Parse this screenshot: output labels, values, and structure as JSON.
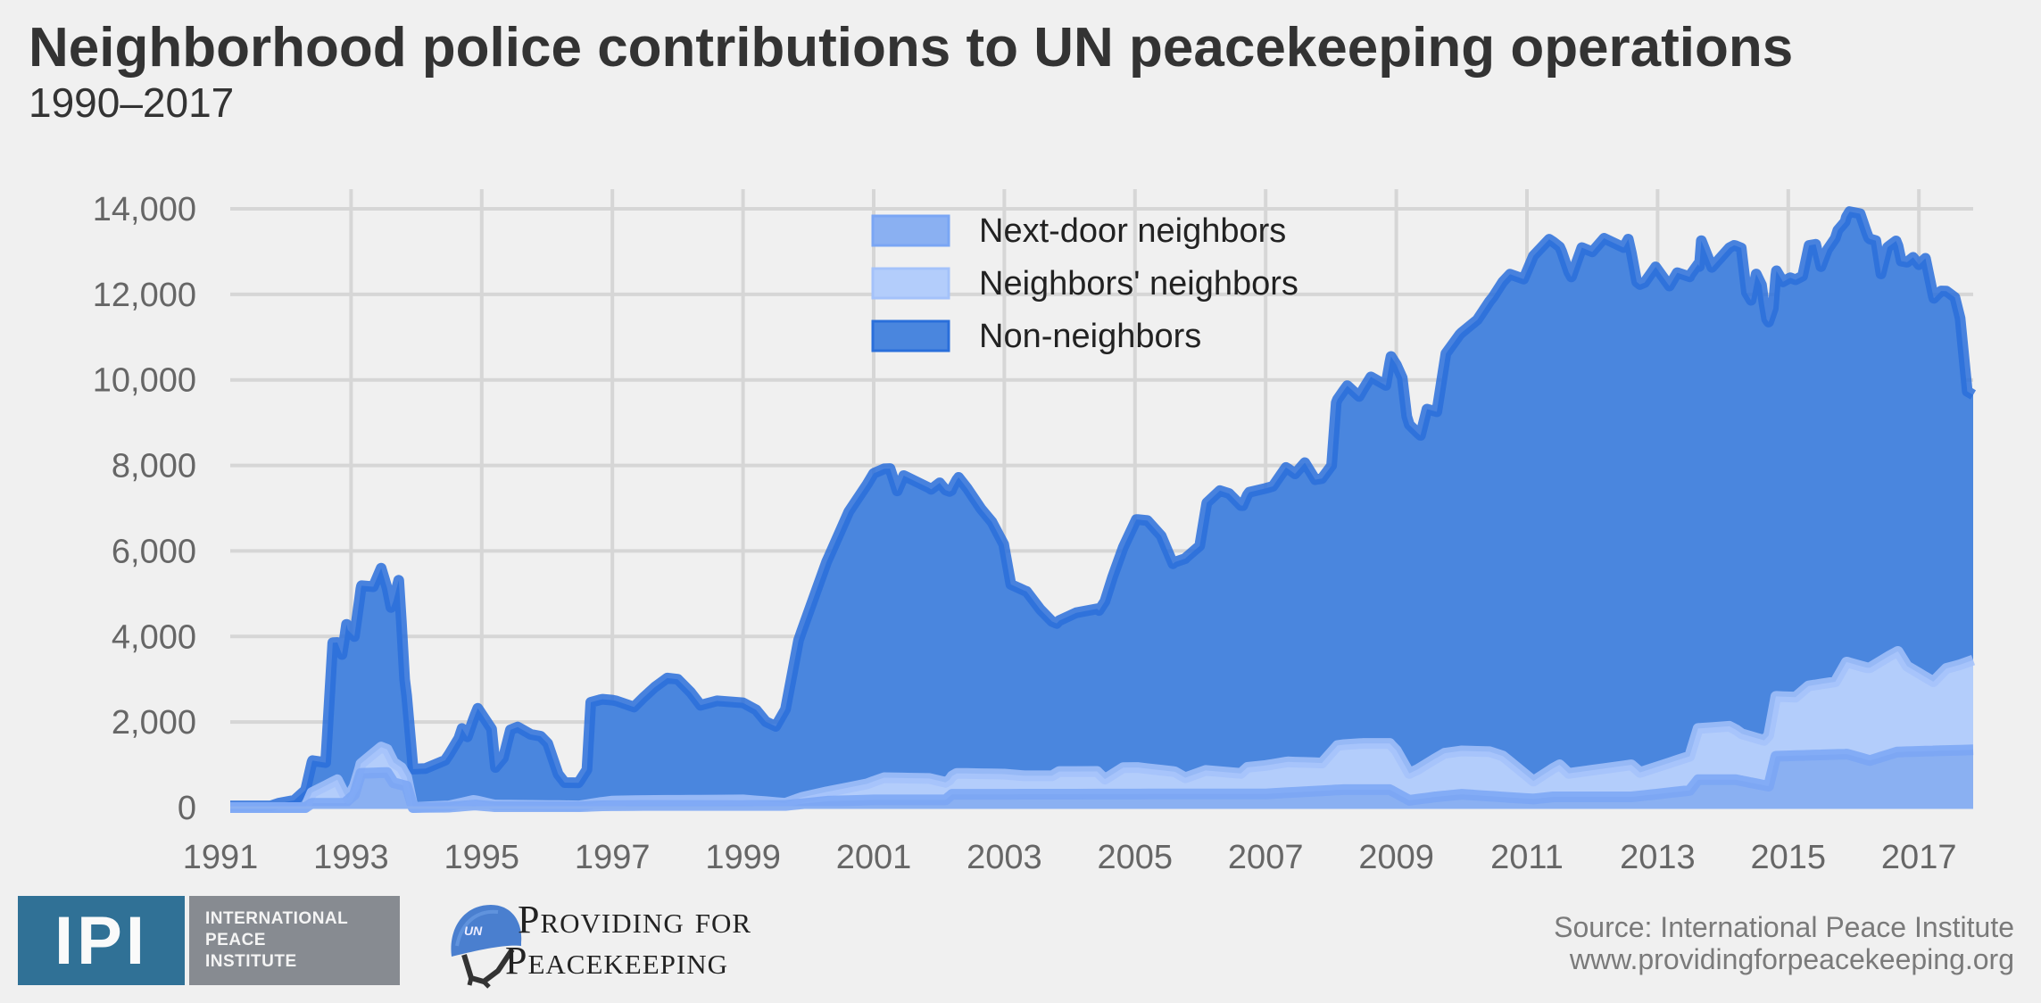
{
  "header": {
    "title": "Neighborhood police contributions to UN peacekeeping operations",
    "subtitle": "1990–2017"
  },
  "footer": {
    "ipi_logo": {
      "abbr": "IPI",
      "lines": [
        "INTERNATIONAL",
        "PEACE",
        "INSTITUTE"
      ]
    },
    "pfp_logo": {
      "helmet_text": "UN",
      "line1": "Providing for",
      "line2": "Peacekeeping"
    },
    "source_line1": "Source: International Peace Institute",
    "source_line2": "www.providingforpeacekeeping.org"
  },
  "colors": {
    "background": "#f0f0f0",
    "grid": "#d6d6d6",
    "next_door_fill": "#8ab0f2",
    "next_door_stroke": "#7aa6f4",
    "neighbors_neighbors_fill": "#b3cdfb",
    "neighbors_neighbors_stroke": "#a4c2fa",
    "non_neighbors_fill": "#4a86de",
    "non_neighbors_stroke": "#2a6fdb",
    "ipi_blue": "#307196",
    "ipi_gray": "#878b91"
  },
  "chart_data": {
    "type": "area",
    "stacked": true,
    "title": "Neighborhood police contributions to UN peacekeeping operations",
    "subtitle": "1990–2017",
    "xlabel": "",
    "ylabel": "",
    "xlim": [
      1991.0,
      2017.83
    ],
    "ylim": [
      0,
      14000
    ],
    "grid": true,
    "legend_position": "top-center",
    "x_ticks": [
      "1991",
      "1993",
      "1995",
      "1997",
      "1999",
      "2001",
      "2003",
      "2005",
      "2007",
      "2009",
      "2011",
      "2013",
      "2015",
      "2017"
    ],
    "y_ticks": [
      "0",
      "2,000",
      "4,000",
      "6,000",
      "8,000",
      "10,000",
      "12,000",
      "14,000"
    ],
    "y_tick_values": [
      0,
      2000,
      4000,
      6000,
      8000,
      10000,
      12000,
      14000
    ],
    "legend": [
      "Next-door neighbors",
      "Neighbors' neighbors",
      "Non-neighbors"
    ],
    "series": [
      {
        "name": "Next-door neighbors",
        "key": "next_door",
        "points": [
          [
            1991.0,
            0
          ],
          [
            1992.3,
            0
          ],
          [
            1992.4,
            100
          ],
          [
            1992.9,
            100
          ],
          [
            1993.05,
            300
          ],
          [
            1993.15,
            800
          ],
          [
            1993.55,
            820
          ],
          [
            1993.65,
            580
          ],
          [
            1993.85,
            500
          ],
          [
            1993.95,
            0
          ],
          [
            1994.5,
            10
          ],
          [
            1994.9,
            60
          ],
          [
            1995.2,
            20
          ],
          [
            1996.5,
            20
          ],
          [
            1996.8,
            40
          ],
          [
            1997.5,
            50
          ],
          [
            1999.0,
            50
          ],
          [
            1999.65,
            50
          ],
          [
            2000.3,
            150
          ],
          [
            2001.0,
            180
          ],
          [
            2002.1,
            180
          ],
          [
            2002.2,
            310
          ],
          [
            2007.0,
            320
          ],
          [
            2008.2,
            420
          ],
          [
            2008.9,
            420
          ],
          [
            2009.2,
            170
          ],
          [
            2009.6,
            250
          ],
          [
            2010.0,
            310
          ],
          [
            2011.1,
            200
          ],
          [
            2011.4,
            250
          ],
          [
            2012.6,
            250
          ],
          [
            2012.9,
            300
          ],
          [
            2013.49,
            400
          ],
          [
            2013.62,
            650
          ],
          [
            2014.2,
            650
          ],
          [
            2014.7,
            500
          ],
          [
            2014.81,
            1200
          ],
          [
            2015.9,
            1250
          ],
          [
            2016.25,
            1100
          ],
          [
            2016.67,
            1300
          ],
          [
            2017.83,
            1350
          ]
        ]
      },
      {
        "name": "Neighbors' neighbors",
        "key": "neighbors_neighbors",
        "points": [
          [
            1991.0,
            0
          ],
          [
            1992.3,
            0
          ],
          [
            1992.4,
            250
          ],
          [
            1992.79,
            550
          ],
          [
            1992.95,
            50
          ],
          [
            1993.05,
            200
          ],
          [
            1993.13,
            200
          ],
          [
            1993.46,
            600
          ],
          [
            1993.77,
            400
          ],
          [
            1993.95,
            0
          ],
          [
            1994.5,
            30
          ],
          [
            1994.87,
            110
          ],
          [
            1995.2,
            40
          ],
          [
            1996.5,
            20
          ],
          [
            1997.0,
            110
          ],
          [
            1999.0,
            130
          ],
          [
            1999.65,
            50
          ],
          [
            1999.9,
            150
          ],
          [
            2000.33,
            230
          ],
          [
            2000.9,
            380
          ],
          [
            2001.16,
            520
          ],
          [
            2001.85,
            500
          ],
          [
            2002.16,
            390
          ],
          [
            2002.27,
            490
          ],
          [
            2003.0,
            470
          ],
          [
            2003.31,
            430
          ],
          [
            2003.73,
            430
          ],
          [
            2003.84,
            530
          ],
          [
            2004.42,
            530
          ],
          [
            2004.54,
            350
          ],
          [
            2004.82,
            620
          ],
          [
            2005.04,
            620
          ],
          [
            2005.61,
            520
          ],
          [
            2005.77,
            380
          ],
          [
            2006.08,
            550
          ],
          [
            2006.62,
            480
          ],
          [
            2006.72,
            620
          ],
          [
            2007.34,
            720
          ],
          [
            2007.86,
            650
          ],
          [
            2008.1,
            1040
          ],
          [
            2008.5,
            1080
          ],
          [
            2008.9,
            1080
          ],
          [
            2009.0,
            1000
          ],
          [
            2009.2,
            630
          ],
          [
            2009.33,
            700
          ],
          [
            2009.74,
            1000
          ],
          [
            2010.43,
            1040
          ],
          [
            2010.63,
            960
          ],
          [
            2011.1,
            420
          ],
          [
            2011.5,
            750
          ],
          [
            2011.64,
            550
          ],
          [
            2012.6,
            750
          ],
          [
            2012.73,
            550
          ],
          [
            2013.49,
            800
          ],
          [
            2013.62,
            1200
          ],
          [
            2014.1,
            1250
          ],
          [
            2014.29,
            1100
          ],
          [
            2014.63,
            1050
          ],
          [
            2014.81,
            1400
          ],
          [
            2015.11,
            1370
          ],
          [
            2015.31,
            1620
          ],
          [
            2015.72,
            1700
          ],
          [
            2015.89,
            2150
          ],
          [
            2016.2,
            2150
          ],
          [
            2016.54,
            2300
          ],
          [
            2016.68,
            2350
          ],
          [
            2016.82,
            2000
          ],
          [
            2017.22,
            1620
          ],
          [
            2017.42,
            1920
          ],
          [
            2017.63,
            2000
          ],
          [
            2017.83,
            2100
          ]
        ]
      },
      {
        "name": "Non-neighbors",
        "key": "non_neighbors",
        "points": [
          [
            1991.0,
            40
          ],
          [
            1991.77,
            40
          ],
          [
            1991.89,
            100
          ],
          [
            1992.13,
            170
          ],
          [
            1992.31,
            420
          ],
          [
            1992.41,
            740
          ],
          [
            1992.61,
            540
          ],
          [
            1992.72,
            3260
          ],
          [
            1992.79,
            3210
          ],
          [
            1992.86,
            3150
          ],
          [
            1992.93,
            4030
          ],
          [
            1993.05,
            3500
          ],
          [
            1993.16,
            4150
          ],
          [
            1993.34,
            3900
          ],
          [
            1993.46,
            4180
          ],
          [
            1993.61,
            3500
          ],
          [
            1993.73,
            4340
          ],
          [
            1993.82,
            2200
          ],
          [
            1993.95,
            900
          ],
          [
            1994.14,
            900
          ],
          [
            1994.44,
            1070
          ],
          [
            1994.65,
            1530
          ],
          [
            1994.7,
            1740
          ],
          [
            1994.78,
            1520
          ],
          [
            1994.94,
            2170
          ],
          [
            1995.15,
            1760
          ],
          [
            1995.21,
            880
          ],
          [
            1995.33,
            1100
          ],
          [
            1995.44,
            1760
          ],
          [
            1995.55,
            1830
          ],
          [
            1995.75,
            1660
          ],
          [
            1995.9,
            1620
          ],
          [
            1996.01,
            1450
          ],
          [
            1996.17,
            740
          ],
          [
            1996.27,
            540
          ],
          [
            1996.48,
            540
          ],
          [
            1996.61,
            820
          ],
          [
            1996.67,
            2380
          ],
          [
            1996.85,
            2410
          ],
          [
            1997.06,
            2340
          ],
          [
            1997.33,
            2190
          ],
          [
            1997.47,
            2400
          ],
          [
            1997.65,
            2650
          ],
          [
            1997.84,
            2860
          ],
          [
            1998.0,
            2830
          ],
          [
            1998.2,
            2520
          ],
          [
            1998.35,
            2220
          ],
          [
            1998.6,
            2320
          ],
          [
            1999.0,
            2270
          ],
          [
            1999.2,
            2130
          ],
          [
            1999.35,
            1870
          ],
          [
            1999.5,
            1780
          ],
          [
            1999.65,
            2200
          ],
          [
            1999.85,
            3700
          ],
          [
            2000.28,
            5380
          ],
          [
            2000.62,
            6450
          ],
          [
            2001.0,
            7200
          ],
          [
            2001.25,
            7230
          ],
          [
            2001.36,
            6710
          ],
          [
            2001.46,
            7070
          ],
          [
            2001.88,
            6770
          ],
          [
            2002.01,
            6970
          ],
          [
            2002.19,
            6700
          ],
          [
            2002.3,
            6920
          ],
          [
            2002.43,
            6670
          ],
          [
            2002.64,
            6200
          ],
          [
            2002.81,
            5890
          ],
          [
            2002.99,
            5370
          ],
          [
            2003.1,
            4450
          ],
          [
            2003.34,
            4310
          ],
          [
            2003.55,
            3890
          ],
          [
            2003.8,
            3500
          ],
          [
            2004.1,
            3710
          ],
          [
            2004.45,
            3810
          ],
          [
            2004.66,
            4620
          ],
          [
            2005.02,
            5800
          ],
          [
            2005.19,
            5800
          ],
          [
            2005.4,
            5480
          ],
          [
            2005.58,
            4860
          ],
          [
            2005.78,
            5140
          ],
          [
            2005.99,
            5300
          ],
          [
            2006.1,
            6260
          ],
          [
            2006.3,
            6570
          ],
          [
            2006.44,
            6520
          ],
          [
            2006.65,
            6220
          ],
          [
            2006.75,
            6430
          ],
          [
            2007.11,
            6500
          ],
          [
            2007.31,
            6890
          ],
          [
            2007.45,
            6740
          ],
          [
            2007.6,
            7010
          ],
          [
            2007.76,
            6620
          ],
          [
            2008.01,
            6700
          ],
          [
            2008.08,
            8050
          ],
          [
            2008.25,
            8390
          ],
          [
            2008.43,
            8120
          ],
          [
            2008.61,
            8570
          ],
          [
            2008.84,
            8370
          ],
          [
            2008.92,
            9080
          ],
          [
            2009.09,
            8950
          ],
          [
            2009.16,
            8240
          ],
          [
            2009.37,
            7770
          ],
          [
            2009.47,
            8290
          ],
          [
            2009.62,
            8090
          ],
          [
            2009.76,
            9340
          ],
          [
            2009.97,
            9740
          ],
          [
            2010.24,
            10090
          ],
          [
            2010.48,
            10650
          ],
          [
            2010.74,
            11400
          ],
          [
            2010.95,
            11550
          ],
          [
            2011.1,
            12280
          ],
          [
            2011.34,
            12430
          ],
          [
            2011.53,
            12050
          ],
          [
            2011.68,
            11600
          ],
          [
            2011.84,
            12250
          ],
          [
            2012.0,
            12120
          ],
          [
            2012.18,
            12400
          ],
          [
            2012.48,
            12120
          ],
          [
            2012.55,
            12300
          ],
          [
            2012.68,
            11400
          ],
          [
            2012.8,
            11420
          ],
          [
            2012.97,
            11700
          ],
          [
            2013.18,
            11150
          ],
          [
            2013.3,
            11400
          ],
          [
            2013.5,
            11200
          ],
          [
            2013.64,
            10800
          ],
          [
            2013.67,
            11400
          ],
          [
            2013.83,
            10760
          ],
          [
            2014.17,
            11300
          ],
          [
            2014.28,
            11350
          ],
          [
            2014.36,
            10350
          ],
          [
            2014.43,
            10200
          ],
          [
            2014.51,
            10850
          ],
          [
            2014.59,
            10630
          ],
          [
            2014.67,
            9780
          ],
          [
            2014.77,
            9400
          ],
          [
            2014.82,
            9950
          ],
          [
            2014.92,
            9700
          ],
          [
            2015.03,
            9800
          ],
          [
            2015.22,
            9700
          ],
          [
            2015.32,
            10300
          ],
          [
            2015.42,
            10300
          ],
          [
            2015.5,
            9760
          ],
          [
            2015.6,
            10130
          ],
          [
            2015.76,
            10450
          ],
          [
            2015.87,
            10350
          ],
          [
            2015.94,
            10550
          ],
          [
            2016.1,
            10570
          ],
          [
            2016.23,
            10050
          ],
          [
            2016.34,
            9900
          ],
          [
            2016.42,
            9050
          ],
          [
            2016.52,
            9580
          ],
          [
            2016.65,
            9620
          ],
          [
            2016.73,
            9250
          ],
          [
            2016.91,
            9640
          ],
          [
            2017.0,
            9550
          ],
          [
            2017.1,
            9790
          ],
          [
            2017.23,
            8950
          ],
          [
            2017.34,
            8950
          ],
          [
            2017.55,
            8620
          ],
          [
            2017.63,
            8100
          ],
          [
            2017.74,
            6330
          ],
          [
            2017.83,
            6200
          ]
        ]
      }
    ]
  }
}
